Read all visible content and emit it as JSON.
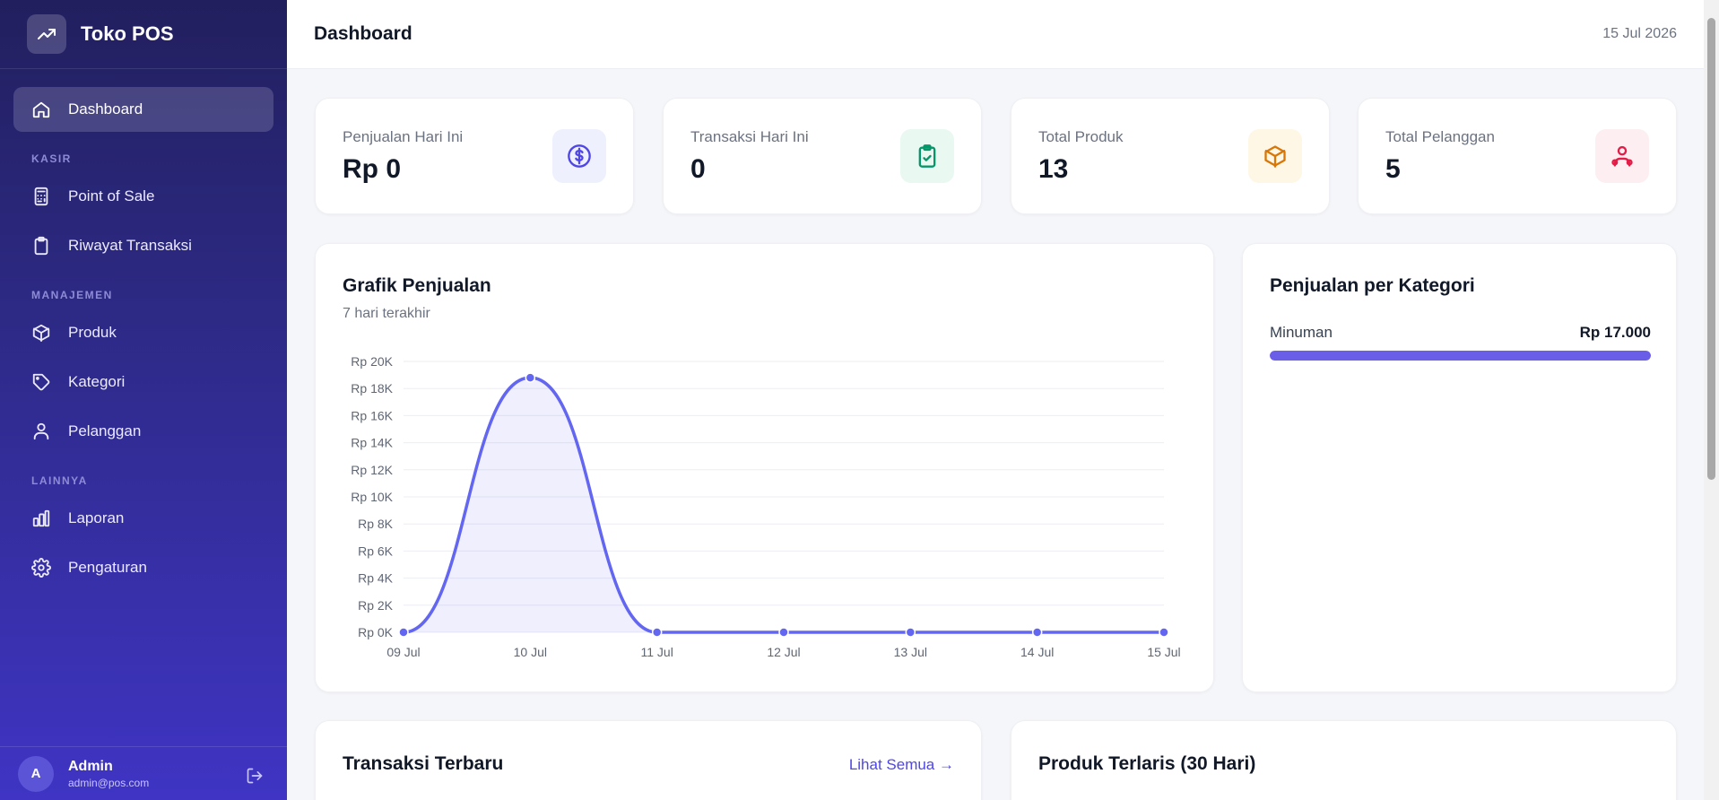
{
  "app": {
    "name": "Toko POS"
  },
  "sidebar": {
    "items": [
      {
        "label": "Dashboard",
        "icon": "home-icon",
        "active": true
      },
      {
        "section": "KASIR"
      },
      {
        "label": "Point of Sale",
        "icon": "calculator-icon"
      },
      {
        "label": "Riwayat Transaksi",
        "icon": "clipboard-icon"
      },
      {
        "section": "MANAJEMEN"
      },
      {
        "label": "Produk",
        "icon": "box-icon"
      },
      {
        "label": "Kategori",
        "icon": "tag-icon"
      },
      {
        "label": "Pelanggan",
        "icon": "users-icon"
      },
      {
        "section": "LAINNYA"
      },
      {
        "label": "Laporan",
        "icon": "bar-chart-icon"
      },
      {
        "label": "Pengaturan",
        "icon": "gear-icon"
      }
    ]
  },
  "user": {
    "initial": "A",
    "name": "Admin",
    "email": "admin@pos.com"
  },
  "header": {
    "title": "Dashboard",
    "date": "15 Jul 2026"
  },
  "stats": [
    {
      "label": "Penjualan Hari Ini",
      "value": "Rp 0",
      "icon": "dollar-icon",
      "color": "#4f46e5",
      "bg": "#eef0fd"
    },
    {
      "label": "Transaksi Hari Ini",
      "value": "0",
      "icon": "clipboard-check-icon",
      "color": "#059669",
      "bg": "#e9f8f1"
    },
    {
      "label": "Total Produk",
      "value": "13",
      "icon": "box-icon",
      "color": "#d97706",
      "bg": "#fef7e6"
    },
    {
      "label": "Total Pelanggan",
      "value": "5",
      "icon": "users-icon",
      "color": "#e11d48",
      "bg": "#fdeef1"
    }
  ],
  "sales_chart": {
    "title": "Grafik Penjualan",
    "subtitle": "7 hari terakhir"
  },
  "chart_data": {
    "type": "area",
    "title": "Grafik Penjualan",
    "subtitle": "7 hari terakhir",
    "categories": [
      "09 Jul",
      "10 Jul",
      "11 Jul",
      "12 Jul",
      "13 Jul",
      "14 Jul",
      "15 Jul"
    ],
    "values": [
      0,
      18800,
      0,
      0,
      0,
      0,
      0
    ],
    "yticks": [
      "Rp 0K",
      "Rp 2K",
      "Rp 4K",
      "Rp 6K",
      "Rp 8K",
      "Rp 10K",
      "Rp 12K",
      "Rp 14K",
      "Rp 16K",
      "Rp 18K",
      "Rp 20K"
    ],
    "ylim": [
      0,
      20000
    ],
    "grid": true,
    "color": "#6366f1"
  },
  "category_sales": {
    "title": "Penjualan per Kategori",
    "items": [
      {
        "name": "Minuman",
        "value": "Rp 17.000",
        "share": 1.0
      }
    ]
  },
  "recent_transactions": {
    "title": "Transaksi Terbaru",
    "link": "Lihat Semua →"
  },
  "best_sellers": {
    "title": "Produk Terlaris (30 Hari)"
  },
  "colors": {
    "accent": "#4f46e5",
    "sidebar": "#2d2a86"
  }
}
